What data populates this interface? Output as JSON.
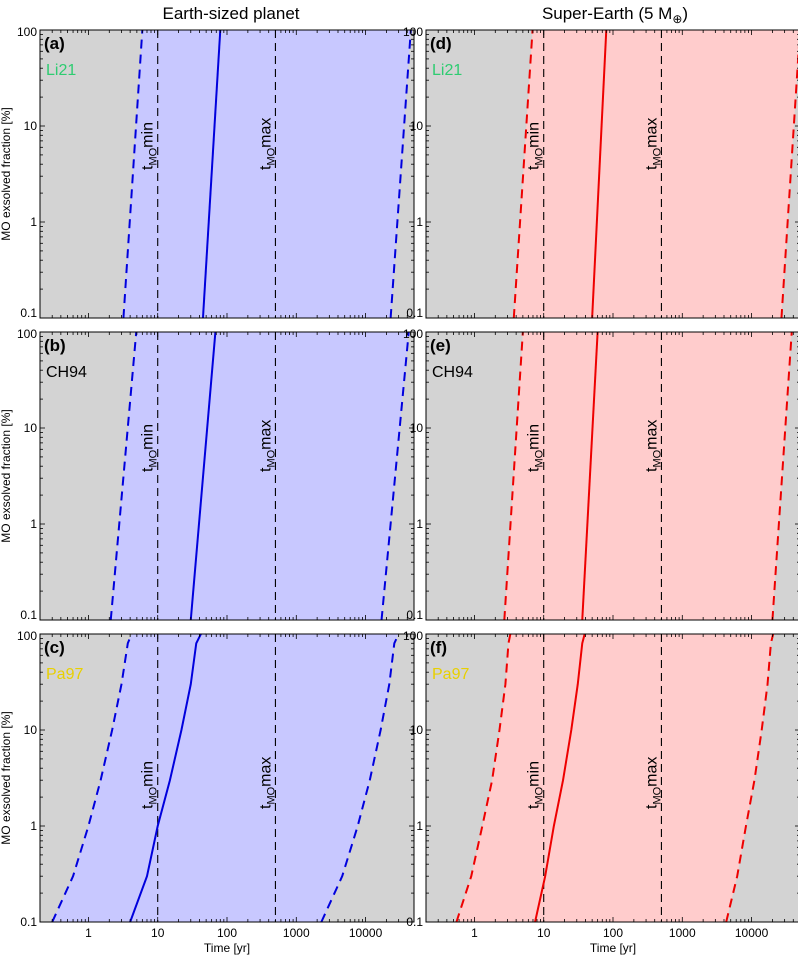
{
  "figure": {
    "column_titles": [
      "Earth-sized planet",
      "Super-Earth (5 M",
      ")"
    ],
    "earth_symbol": "⊕"
  },
  "chart_data": [
    {
      "type": "line",
      "panel": "(a)",
      "model": "Li21",
      "model_color": "#2ecc71",
      "column": 0,
      "row": 0,
      "band_color": "#c8c8ff",
      "line_color": "#0000dd",
      "x_scale": "log",
      "y_scale": "log",
      "xlim": [
        0.2,
        50000
      ],
      "ylim": [
        0.1,
        100
      ],
      "ylabel": "MO exsolved fraction [%]",
      "xlabel": "",
      "vlines": [
        {
          "x": 10,
          "label_main": "t",
          "label_sub": "MO",
          "label_tail": "min"
        },
        {
          "x": 500,
          "label_main": "t",
          "label_sub": "MO",
          "label_tail": "max"
        }
      ],
      "series": [
        {
          "style": "dashed",
          "x": [
            3.2,
            6.0
          ],
          "y": [
            0.1,
            100
          ]
        },
        {
          "style": "solid",
          "x": [
            45,
            80
          ],
          "y": [
            0.1,
            100
          ]
        },
        {
          "style": "dashed",
          "x": [
            23000,
            45000
          ],
          "y": [
            0.1,
            100
          ]
        }
      ],
      "band": {
        "left": [
          3.2,
          6.0
        ],
        "right": [
          23000,
          45000
        ]
      }
    },
    {
      "type": "line",
      "panel": "(b)",
      "model": "CH94",
      "model_color": "#000000",
      "column": 0,
      "row": 1,
      "band_color": "#c8c8ff",
      "line_color": "#0000dd",
      "x_scale": "log",
      "y_scale": "log",
      "xlim": [
        0.2,
        50000
      ],
      "ylim": [
        0.1,
        100
      ],
      "ylabel": "MO exsolved fraction [%]",
      "xlabel": "",
      "vlines": [
        {
          "x": 10,
          "label_main": "t",
          "label_sub": "MO",
          "label_tail": "min"
        },
        {
          "x": 500,
          "label_main": "t",
          "label_sub": "MO",
          "label_tail": "max"
        }
      ],
      "series": [
        {
          "style": "dashed",
          "x": [
            2.1,
            4.9
          ],
          "y": [
            0.1,
            100
          ]
        },
        {
          "style": "solid",
          "x": [
            30,
            68
          ],
          "y": [
            0.1,
            100
          ]
        },
        {
          "style": "dashed",
          "x": [
            17000,
            42000
          ],
          "y": [
            0.1,
            100
          ]
        }
      ],
      "band": {
        "left": [
          2.1,
          4.9
        ],
        "right": [
          17000,
          42000
        ]
      }
    },
    {
      "type": "line",
      "panel": "(c)",
      "model": "Pa97",
      "model_color": "#e8d000",
      "column": 0,
      "row": 2,
      "band_color": "#c8c8ff",
      "line_color": "#0000dd",
      "x_scale": "log",
      "y_scale": "log",
      "xlim": [
        0.2,
        50000
      ],
      "ylim": [
        0.1,
        100
      ],
      "ylabel": "MO exsolved fraction [%]",
      "xlabel": "Time [yr]",
      "vlines": [
        {
          "x": 10,
          "label_main": "t",
          "label_sub": "MO",
          "label_tail": "min"
        },
        {
          "x": 500,
          "label_main": "t",
          "label_sub": "MO",
          "label_tail": "max"
        }
      ],
      "series": [
        {
          "style": "dashed",
          "x": [
            0.3,
            0.6,
            1.0,
            1.5,
            2.2,
            3.0,
            3.7,
            4.2
          ],
          "y": [
            0.1,
            0.3,
            1,
            3,
            10,
            30,
            80,
            100
          ]
        },
        {
          "style": "solid",
          "x": [
            4.0,
            7,
            10,
            15,
            22,
            30,
            36,
            42
          ],
          "y": [
            0.1,
            0.3,
            1,
            3,
            10,
            30,
            80,
            100
          ]
        },
        {
          "style": "dashed",
          "x": [
            2300,
            4600,
            7700,
            11500,
            16500,
            22000,
            26000,
            30000
          ],
          "y": [
            0.1,
            0.3,
            1,
            3,
            10,
            30,
            80,
            100
          ]
        }
      ],
      "band": {
        "left": [
          0.3,
          4.2
        ],
        "right": [
          2300,
          30000
        ]
      }
    },
    {
      "type": "line",
      "panel": "(d)",
      "model": "Li21",
      "model_color": "#2ecc71",
      "column": 1,
      "row": 0,
      "band_color": "#ffcccc",
      "line_color": "#ee0000",
      "x_scale": "log",
      "y_scale": "log",
      "xlim": [
        0.2,
        50000
      ],
      "ylim": [
        0.1,
        100
      ],
      "ylabel": "",
      "xlabel": "",
      "vlines": [
        {
          "x": 10,
          "label_main": "t",
          "label_sub": "MO",
          "label_tail": "min"
        },
        {
          "x": 500,
          "label_main": "t",
          "label_sub": "MO",
          "label_tail": "max"
        }
      ],
      "series": [
        {
          "style": "dashed",
          "x": [
            3.7,
            6.9
          ],
          "y": [
            0.1,
            100
          ]
        },
        {
          "style": "solid",
          "x": [
            50,
            80
          ],
          "y": [
            0.1,
            100
          ]
        },
        {
          "style": "dashed",
          "x": [
            27000,
            50000
          ],
          "y": [
            0.1,
            100
          ]
        }
      ],
      "band": {
        "left": [
          3.7,
          6.9
        ],
        "right": [
          27000,
          50000
        ]
      }
    },
    {
      "type": "line",
      "panel": "(e)",
      "model": "CH94",
      "model_color": "#000000",
      "column": 1,
      "row": 1,
      "band_color": "#ffcccc",
      "line_color": "#ee0000",
      "x_scale": "log",
      "y_scale": "log",
      "xlim": [
        0.2,
        50000
      ],
      "ylim": [
        0.1,
        100
      ],
      "ylabel": "",
      "xlabel": "",
      "vlines": [
        {
          "x": 10,
          "label_main": "t",
          "label_sub": "MO",
          "label_tail": "min"
        },
        {
          "x": 500,
          "label_main": "t",
          "label_sub": "MO",
          "label_tail": "max"
        }
      ],
      "series": [
        {
          "style": "dashed",
          "x": [
            2.7,
            5.0
          ],
          "y": [
            0.1,
            100
          ]
        },
        {
          "style": "solid",
          "x": [
            36,
            60
          ],
          "y": [
            0.1,
            100
          ]
        },
        {
          "style": "dashed",
          "x": [
            20000,
            38000
          ],
          "y": [
            0.1,
            100
          ]
        }
      ],
      "band": {
        "left": [
          2.7,
          5.0
        ],
        "right": [
          20000,
          38000
        ]
      }
    },
    {
      "type": "line",
      "panel": "(f)",
      "model": "Pa97",
      "model_color": "#e8d000",
      "column": 1,
      "row": 2,
      "band_color": "#ffcccc",
      "line_color": "#ee0000",
      "x_scale": "log",
      "y_scale": "log",
      "xlim": [
        0.2,
        50000
      ],
      "ylim": [
        0.1,
        100
      ],
      "ylabel": "",
      "xlabel": "Time [yr]",
      "vlines": [
        {
          "x": 10,
          "label_main": "t",
          "label_sub": "MO",
          "label_tail": "min"
        },
        {
          "x": 500,
          "label_main": "t",
          "label_sub": "MO",
          "label_tail": "max"
        }
      ],
      "series": [
        {
          "style": "dashed",
          "x": [
            0.55,
            0.9,
            1.3,
            1.8,
            2.3,
            2.8,
            3.1,
            3.3
          ],
          "y": [
            0.1,
            0.3,
            1,
            3,
            10,
            30,
            80,
            100
          ]
        },
        {
          "style": "solid",
          "x": [
            7.5,
            10.5,
            14,
            19,
            25,
            31,
            36,
            39
          ],
          "y": [
            0.1,
            0.3,
            1,
            3,
            10,
            30,
            80,
            100
          ]
        },
        {
          "style": "dashed",
          "x": [
            4300,
            6200,
            8300,
            11000,
            14000,
            17000,
            19000,
            20500
          ],
          "y": [
            0.1,
            0.3,
            1,
            3,
            10,
            30,
            80,
            100
          ]
        }
      ],
      "band": {
        "left": [
          0.55,
          3.3
        ],
        "right": [
          4300,
          20500
        ]
      }
    }
  ],
  "axes": {
    "x_ticks": [
      1,
      10,
      100,
      1000,
      10000
    ],
    "x_tick_labels": [
      "1",
      "10",
      "100",
      "1000",
      "10000"
    ],
    "y_ticks": [
      0.1,
      1,
      10,
      100
    ],
    "y_tick_labels": [
      "0.1",
      "1",
      "10",
      "100"
    ],
    "background_color": "#d3d3d3"
  }
}
